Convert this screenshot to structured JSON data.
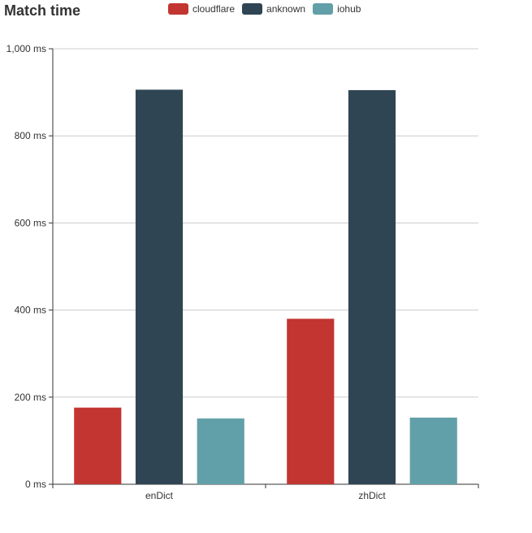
{
  "chart_data": {
    "type": "bar",
    "title": "Match time",
    "categories": [
      "enDict",
      "zhDict"
    ],
    "series": [
      {
        "name": "cloudflare",
        "color": "#c23531",
        "values": [
          176,
          380
        ]
      },
      {
        "name": "anknown",
        "color": "#2f4554",
        "values": [
          906,
          905
        ]
      },
      {
        "name": "iohub",
        "color": "#61a0a8",
        "values": [
          151,
          153
        ]
      }
    ],
    "y_ticks": [
      "0 ms",
      "200 ms",
      "400 ms",
      "600 ms",
      "800 ms",
      "1,000 ms"
    ],
    "ylim": [
      0,
      1000
    ],
    "y_unit": "ms",
    "grid": true,
    "legend_position": "top-center"
  }
}
